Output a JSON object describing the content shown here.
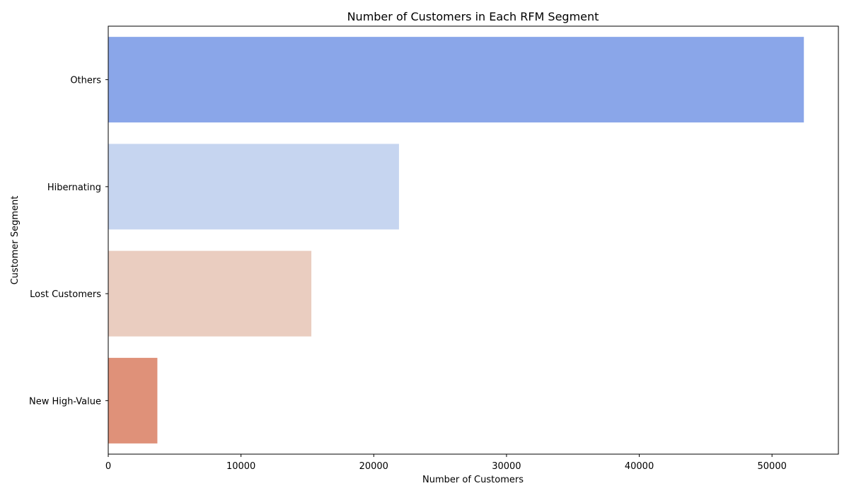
{
  "chart_data": {
    "type": "bar",
    "orientation": "horizontal",
    "title": "Number of Customers in Each RFM Segment",
    "xlabel": "Number of Customers",
    "ylabel": "Customer Segment",
    "categories": [
      "Others",
      "Hibernating",
      "Lost Customers",
      "New High-Value"
    ],
    "values": [
      52400,
      21900,
      15300,
      3700
    ],
    "colors": [
      "#8aa6e9",
      "#c6d5f0",
      "#eacdc0",
      "#df9179"
    ],
    "xlim": [
      0,
      55000
    ],
    "xticks": [
      0,
      10000,
      20000,
      30000,
      40000,
      50000
    ],
    "xtick_labels": [
      "0",
      "10000",
      "20000",
      "30000",
      "40000",
      "50000"
    ],
    "grid": false,
    "legend": "none"
  }
}
